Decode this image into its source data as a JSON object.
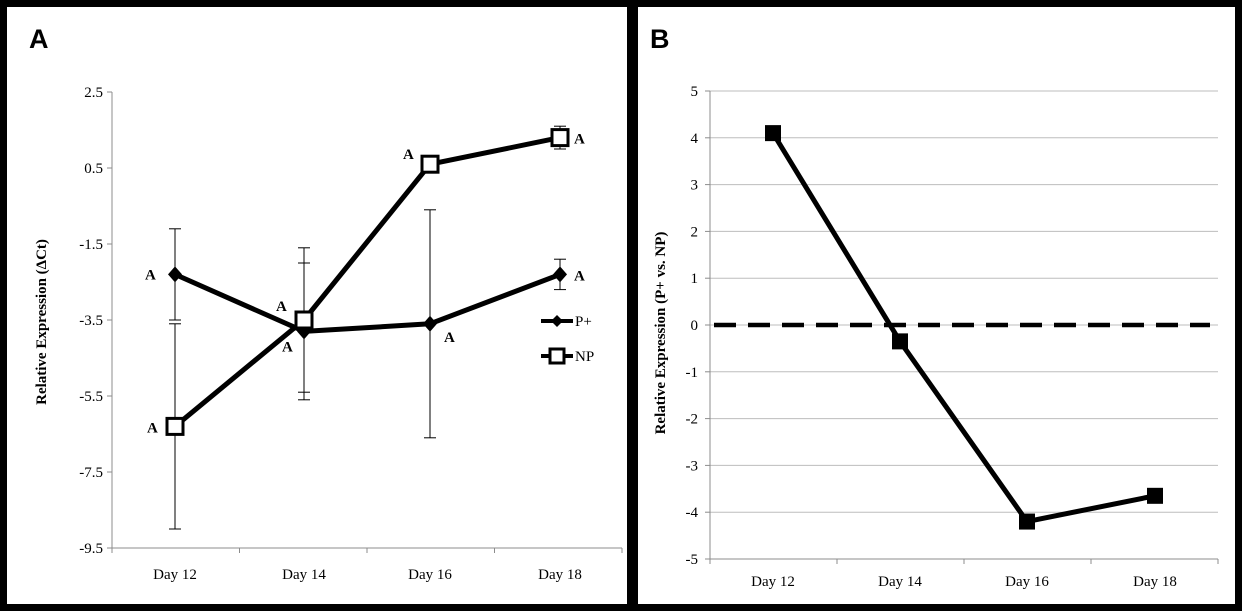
{
  "panels": [
    {
      "letter": "A"
    },
    {
      "letter": "B"
    }
  ],
  "chart_data": [
    {
      "type": "line",
      "panel": "A",
      "title": "",
      "xlabel": "",
      "ylabel": "Relative Expression (ΔCt)",
      "categories": [
        "Day 12",
        "Day 14",
        "Day 16",
        "Day 18"
      ],
      "ylim": [
        -9.5,
        2.5
      ],
      "yticks": [
        "2.5",
        "0.5",
        "-1.5",
        "-3.5",
        "-5.5",
        "-7.5",
        "-9.5"
      ],
      "grid": false,
      "legend": "right",
      "series": [
        {
          "name": "P+",
          "marker": "filled-diamond",
          "values": [
            -2.3,
            -3.8,
            -3.6,
            -2.3
          ],
          "error": [
            1.2,
            1.8,
            3.0,
            0.4
          ],
          "labels": [
            "A",
            "A",
            "A",
            "A"
          ]
        },
        {
          "name": "NP",
          "marker": "open-square",
          "values": [
            -6.3,
            -3.5,
            0.6,
            1.3
          ],
          "error": [
            2.7,
            1.9,
            0,
            0.3
          ],
          "labels": [
            "A",
            "A",
            "A",
            "A"
          ]
        }
      ]
    },
    {
      "type": "line",
      "panel": "B",
      "title": "",
      "xlabel": "",
      "ylabel": "Relative Expression (P+ vs. NP)",
      "categories": [
        "Day 12",
        "Day 14",
        "Day 16",
        "Day 18"
      ],
      "ylim": [
        -5,
        5
      ],
      "yticks": [
        "5",
        "4",
        "3",
        "2",
        "1",
        "0",
        "-1",
        "-2",
        "-3",
        "-4",
        "-5"
      ],
      "grid": true,
      "reference_line": 0,
      "series": [
        {
          "marker": "filled-square",
          "values": [
            4.1,
            -0.35,
            -4.2,
            -3.65
          ]
        }
      ]
    }
  ],
  "colors": {
    "line": "#000000",
    "grid": "#bdbdbd",
    "frame": "#000000"
  }
}
